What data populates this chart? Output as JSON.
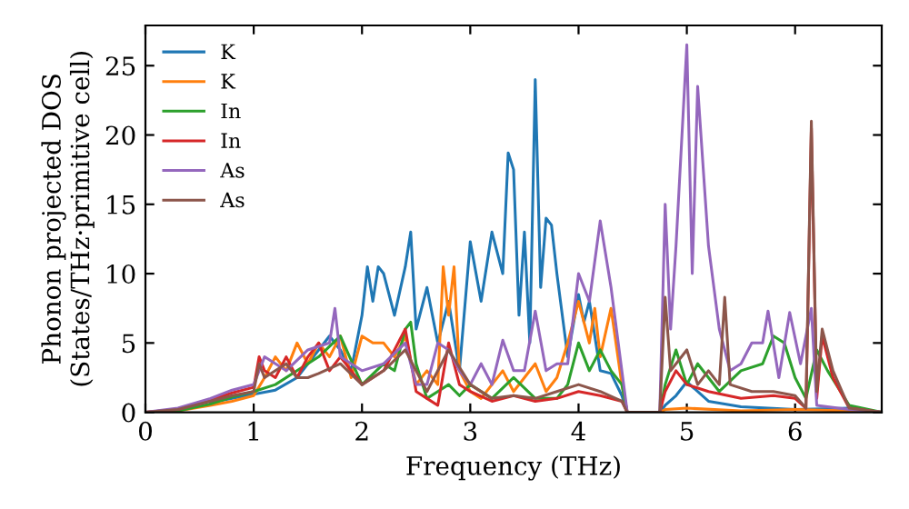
{
  "chart_data": {
    "type": "line",
    "xlabel": "Frequency (THz)",
    "ylabel": "Phonon projected DOS\n(States/THz·primitive cell)",
    "xlim": [
      0,
      6.8
    ],
    "ylim": [
      0,
      27.9
    ],
    "xticks": [
      0,
      1,
      2,
      3,
      4,
      5,
      6
    ],
    "yticks": [
      0,
      5,
      10,
      15,
      20,
      25
    ],
    "legend": "top left",
    "grid": false,
    "series": [
      {
        "name": "K",
        "color": "#1f77b4",
        "x": [
          0.6,
          0.8,
          1.0,
          1.2,
          1.4,
          1.6,
          1.7,
          1.8,
          1.9,
          2.0,
          2.05,
          2.1,
          2.15,
          2.2,
          2.3,
          2.4,
          2.45,
          2.5,
          2.6,
          2.7,
          2.8,
          2.9,
          3.0,
          3.1,
          3.2,
          3.3,
          3.35,
          3.4,
          3.45,
          3.5,
          3.55,
          3.6,
          3.65,
          3.7,
          3.75,
          3.8,
          3.9,
          4.0,
          4.05,
          4.1,
          4.2,
          4.3,
          4.4,
          4.45,
          4.75,
          4.8,
          4.9,
          5.0,
          5.2,
          5.5,
          6.0,
          6.5,
          6.8
        ],
        "values": [
          0.7,
          1.0,
          1.3,
          1.6,
          2.5,
          4.5,
          5.5,
          4.5,
          3,
          7,
          10.5,
          8,
          10.5,
          10,
          7,
          10.5,
          13,
          6,
          9,
          5,
          8,
          3,
          12.3,
          8,
          13,
          10,
          18.7,
          17.5,
          7,
          13,
          5,
          24,
          9,
          14,
          13.5,
          10,
          4,
          8.5,
          6.5,
          8,
          3,
          2.8,
          1.2,
          0,
          0,
          0.5,
          1.2,
          2.2,
          0.8,
          0.4,
          0.2,
          0.3,
          0
        ]
      },
      {
        "name": "K",
        "color": "#ff7f0e",
        "x": [
          0,
          0.3,
          0.6,
          0.8,
          1.0,
          1.1,
          1.2,
          1.3,
          1.4,
          1.5,
          1.6,
          1.7,
          1.8,
          1.9,
          2.0,
          2.1,
          2.2,
          2.3,
          2.4,
          2.5,
          2.6,
          2.7,
          2.75,
          2.8,
          2.85,
          2.9,
          3.0,
          3.1,
          3.2,
          3.3,
          3.4,
          3.5,
          3.6,
          3.7,
          3.8,
          3.9,
          4.0,
          4.1,
          4.15,
          4.2,
          4.3,
          4.4,
          4.45,
          4.75,
          4.8,
          5.0,
          5.5,
          6.0,
          6.5,
          6.8
        ],
        "values": [
          0,
          0.1,
          0.5,
          0.8,
          1.2,
          2.5,
          4,
          3,
          5,
          3.5,
          5,
          4,
          5.5,
          2.5,
          5.5,
          5,
          5,
          4,
          5.5,
          2,
          3,
          2,
          10.5,
          7,
          10.5,
          3,
          1.5,
          1,
          2,
          3,
          1.5,
          2.5,
          3.5,
          1.5,
          2.5,
          5,
          8,
          5,
          7.5,
          4,
          7.5,
          2,
          0,
          0,
          0.2,
          0.3,
          0.1,
          0.2,
          0.1,
          0
        ]
      },
      {
        "name": "In",
        "color": "#2ca02c",
        "x": [
          0,
          0.3,
          0.6,
          0.8,
          1.0,
          1.2,
          1.4,
          1.6,
          1.8,
          2.0,
          2.2,
          2.3,
          2.4,
          2.45,
          2.5,
          2.6,
          2.7,
          2.8,
          2.9,
          3.0,
          3.2,
          3.4,
          3.6,
          3.8,
          3.9,
          4.0,
          4.1,
          4.2,
          4.3,
          4.4,
          4.45,
          4.75,
          4.8,
          4.9,
          5.0,
          5.1,
          5.3,
          5.5,
          5.7,
          5.8,
          5.9,
          6.0,
          6.1,
          6.2,
          6.3,
          6.5,
          6.8
        ],
        "values": [
          0,
          0.1,
          0.6,
          1.1,
          1.5,
          2,
          3,
          4,
          5.5,
          2,
          3.5,
          3,
          6,
          6.5,
          3.5,
          1,
          1.5,
          2,
          1.2,
          2,
          1,
          2.5,
          1,
          1,
          2,
          5,
          3,
          4.5,
          3,
          2,
          0,
          0,
          2,
          4.5,
          2,
          3.5,
          1.5,
          3,
          3.5,
          5.5,
          5,
          2.5,
          1,
          4.5,
          3,
          0.5,
          0
        ]
      },
      {
        "name": "In",
        "color": "#d62728",
        "x": [
          0,
          0.3,
          0.6,
          0.8,
          1.0,
          1.05,
          1.1,
          1.2,
          1.3,
          1.4,
          1.5,
          1.6,
          1.7,
          1.8,
          2.0,
          2.2,
          2.4,
          2.5,
          2.6,
          2.7,
          2.8,
          2.9,
          3.0,
          3.2,
          3.4,
          3.6,
          3.8,
          4.0,
          4.2,
          4.4,
          4.45,
          4.75,
          4.8,
          4.9,
          5.0,
          5.2,
          5.5,
          5.8,
          6.0,
          6.1,
          6.15,
          6.2,
          6.25,
          6.35,
          6.5,
          6.8
        ],
        "values": [
          0,
          0.2,
          0.9,
          1.4,
          1.8,
          4,
          3,
          2.5,
          4,
          2.5,
          4,
          5,
          3,
          4,
          2,
          3,
          6,
          1.5,
          1,
          0.5,
          5,
          2,
          1.5,
          0.8,
          1.2,
          0.8,
          1,
          1.5,
          1.2,
          0.8,
          0,
          0,
          1.5,
          3,
          2,
          1.5,
          1,
          1.2,
          1,
          0.3,
          20.5,
          1,
          5.5,
          2.5,
          0.3,
          0
        ]
      },
      {
        "name": "As",
        "color": "#9467bd",
        "x": [
          0,
          0.3,
          0.6,
          0.8,
          1.0,
          1.1,
          1.3,
          1.5,
          1.7,
          1.75,
          1.8,
          2.0,
          2.2,
          2.4,
          2.5,
          2.6,
          2.7,
          2.8,
          2.9,
          3.0,
          3.1,
          3.2,
          3.3,
          3.4,
          3.5,
          3.6,
          3.7,
          3.8,
          3.9,
          4.0,
          4.1,
          4.2,
          4.3,
          4.4,
          4.45,
          4.75,
          4.8,
          4.85,
          4.9,
          5.0,
          5.05,
          5.1,
          5.2,
          5.3,
          5.4,
          5.5,
          5.6,
          5.7,
          5.75,
          5.85,
          5.95,
          6.05,
          6.15,
          6.2,
          6.5,
          6.8
        ],
        "values": [
          0,
          0.3,
          1,
          1.6,
          2,
          4,
          3,
          4.5,
          5,
          7.5,
          4,
          3,
          3.5,
          5,
          2,
          2,
          5,
          4.5,
          3,
          2,
          3.5,
          2,
          5.2,
          3,
          3,
          7.3,
          3,
          3.5,
          3.5,
          10,
          8,
          13.8,
          9,
          3,
          0,
          0,
          15,
          6,
          12,
          26.5,
          10,
          23.5,
          12,
          6,
          3,
          3.5,
          5,
          5,
          7.3,
          2.5,
          7.2,
          3.5,
          7.5,
          0.5,
          0.2,
          0
        ]
      },
      {
        "name": "As",
        "color": "#8c564b",
        "x": [
          0,
          0.3,
          0.6,
          0.8,
          1.0,
          1.05,
          1.1,
          1.2,
          1.3,
          1.4,
          1.5,
          1.6,
          1.8,
          2.0,
          2.2,
          2.4,
          2.6,
          2.8,
          3.0,
          3.2,
          3.4,
          3.6,
          3.8,
          4.0,
          4.2,
          4.4,
          4.45,
          4.75,
          4.8,
          4.85,
          5.0,
          5.1,
          5.2,
          5.3,
          5.35,
          5.4,
          5.6,
          5.8,
          6.0,
          6.1,
          6.15,
          6.2,
          6.25,
          6.35,
          6.5,
          6.8
        ],
        "values": [
          0,
          0.2,
          0.8,
          1.2,
          1.5,
          3.5,
          2.5,
          3,
          3.5,
          2.5,
          2.5,
          2.8,
          3.5,
          2,
          3,
          4.5,
          1.5,
          4.5,
          2,
          1,
          1.2,
          1,
          1.5,
          2,
          1.5,
          0.8,
          0,
          0,
          8.3,
          3,
          4.5,
          2,
          3,
          2,
          8.3,
          2,
          1.5,
          1.5,
          1.2,
          0.3,
          21,
          1.5,
          6,
          3,
          0.3,
          0
        ]
      }
    ]
  }
}
